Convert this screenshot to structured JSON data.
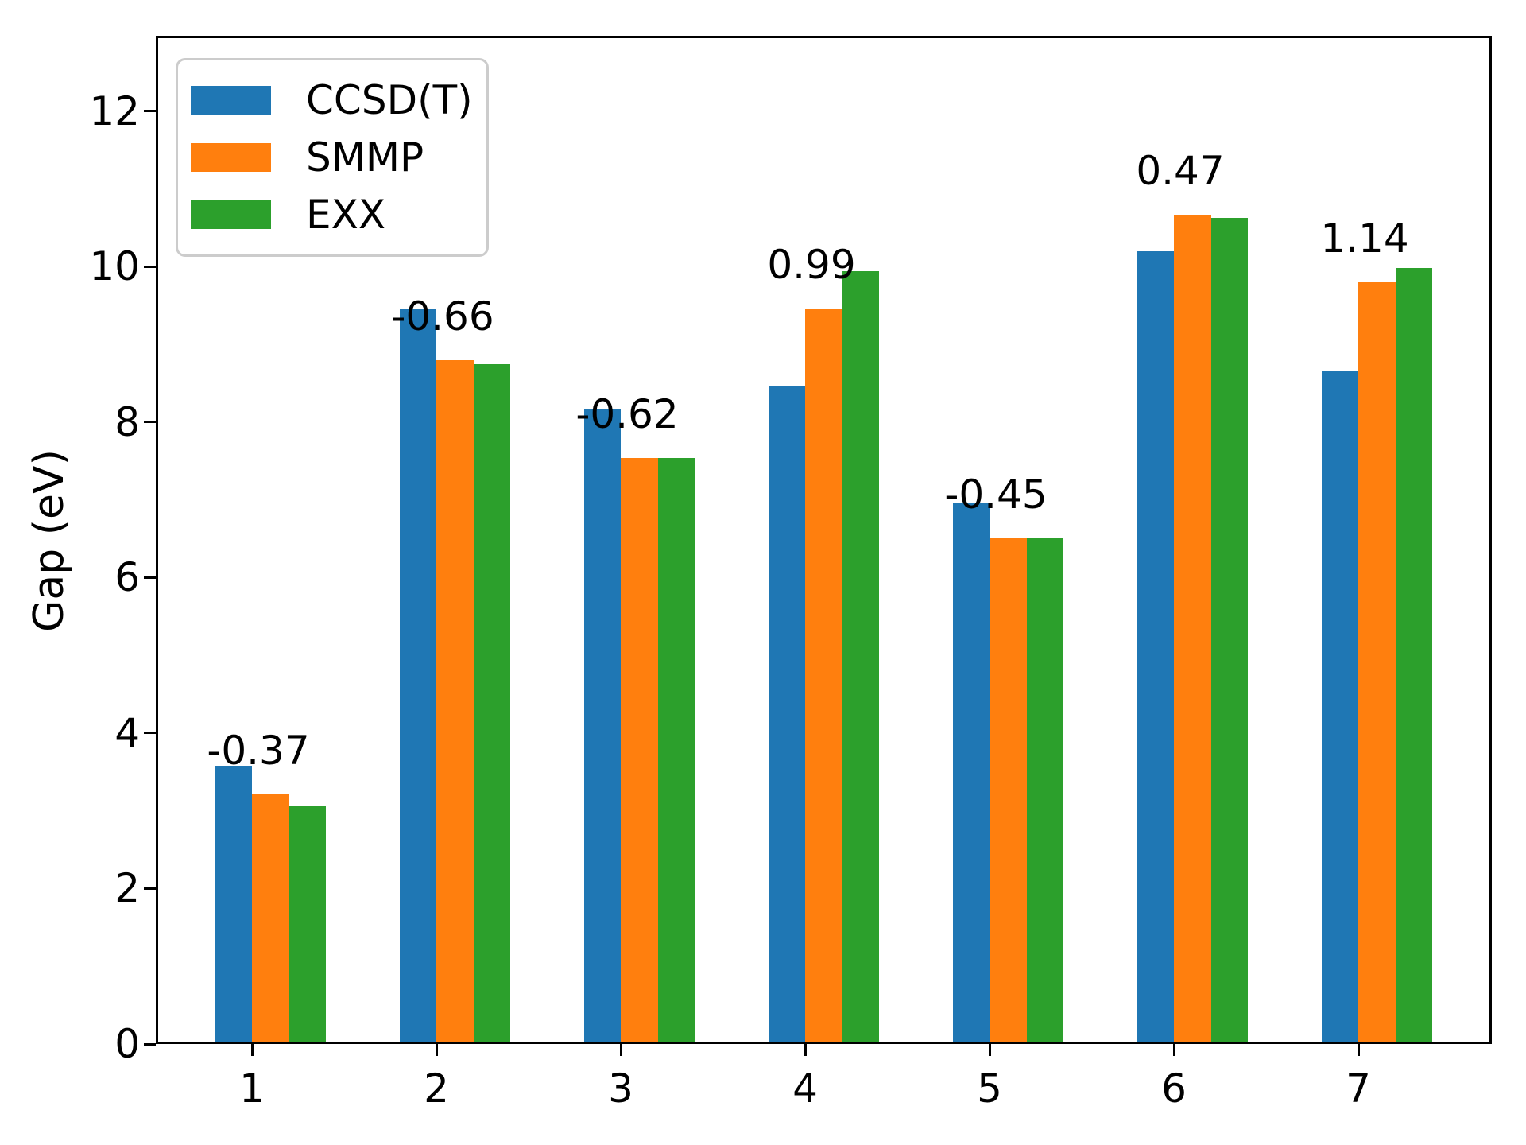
{
  "chart_data": {
    "type": "bar",
    "title": "",
    "xlabel": "",
    "ylabel": "Gap (eV)",
    "categories": [
      "1",
      "2",
      "3",
      "4",
      "5",
      "6",
      "7"
    ],
    "series": [
      {
        "name": "CCSD(T)",
        "color": "#1f77b4",
        "values": [
          3.55,
          9.43,
          8.13,
          8.44,
          6.93,
          10.17,
          8.63
        ]
      },
      {
        "name": "SMMP",
        "color": "#ff7f0e",
        "values": [
          3.18,
          8.77,
          7.51,
          9.43,
          6.48,
          10.64,
          9.77
        ]
      },
      {
        "name": "EXX",
        "color": "#2ca02c",
        "values": [
          3.03,
          8.72,
          7.51,
          9.91,
          6.48,
          10.6,
          9.95
        ]
      }
    ],
    "bar_annotations": [
      "-0.37",
      "-0.66",
      "-0.62",
      "0.99",
      "-0.45",
      "0.47",
      "1.14"
    ],
    "yticks": [
      "0",
      "2",
      "4",
      "6",
      "8",
      "10",
      "12"
    ],
    "ylim": [
      0,
      12.97
    ],
    "legend_position": "upper left",
    "grid": false,
    "axis_color": "#000000",
    "background_color": "#ffffff"
  }
}
